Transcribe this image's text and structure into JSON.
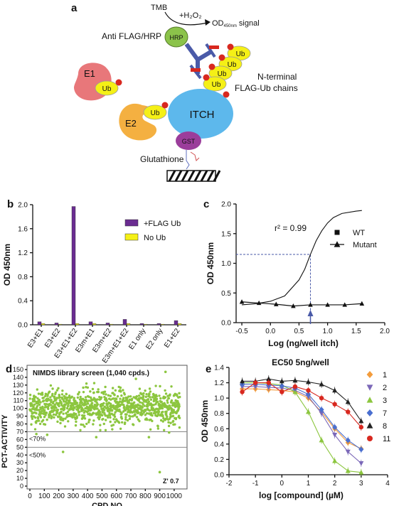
{
  "panels": [
    {
      "letter": "a",
      "labels": {
        "tmb": "TMB",
        "h2o2": "+H₂O₂",
        "od_signal_prefix": "OD",
        "od_signal_sub": "450nm",
        "od_signal_suffix": " signal",
        "antibody": "Anti FLAG/HRP",
        "hrp": "HRP",
        "e1": "E1",
        "ub": "Ub",
        "e2": "E2",
        "itch": "ITCH",
        "gst": "GST",
        "glutathione": "Glutathione",
        "flag_chain_line1": "N-terminal",
        "flag_chain_line2": "FLAG-Ub chains"
      },
      "colors": {
        "e1": "#e8777a",
        "ub": "#f5f016",
        "e2": "#f4b041",
        "itch": "#5db8ec",
        "gst": "#9b3d9b",
        "hrp": "#8bc34a",
        "antibody": "#4a5aa8",
        "flag": "#d8281f"
      }
    }
  ],
  "chart_data": [
    {
      "panel": "b",
      "type": "bar",
      "ylabel": "OD 450nm",
      "ylim": [
        0,
        2.0
      ],
      "yticks": [
        "0.0",
        "0.4",
        "0.8",
        "1.2",
        "1.6",
        "2.0"
      ],
      "categories": [
        "E3+E1",
        "E3+E2",
        "E3+E1+E2",
        "E3m+E1",
        "E3m+E2",
        "E3m+E1+E2",
        "E1 only",
        "E2 only",
        "E1+E2"
      ],
      "series": [
        {
          "name": "+FLAG Ub",
          "color": "#6a2c91",
          "values": [
            0.05,
            0.03,
            1.97,
            0.05,
            0.03,
            0.09,
            0.02,
            0.02,
            0.07
          ]
        },
        {
          "name": "No Ub",
          "color": "#f5f016",
          "values": [
            0.02,
            0.01,
            0.02,
            0.02,
            0.01,
            0.02,
            0.01,
            0.01,
            0.02
          ]
        }
      ],
      "legend": "top-right"
    },
    {
      "panel": "c",
      "type": "line",
      "ylabel": "OD 450nm",
      "xlabel": "Log (ng/well itch)",
      "xlim": [
        -0.6,
        2.0
      ],
      "ylim": [
        0,
        2.0
      ],
      "xticks": [
        "-0.5",
        "0.0",
        "0.5",
        "1.0",
        "1.5",
        "2.0"
      ],
      "yticks": [
        "0.0",
        "0.5",
        "1.0",
        "1.5",
        "2.0"
      ],
      "annotation": "r² = 0.99",
      "ec50_label": "EC50 5ng/well",
      "ec50_x": 0.7,
      "ec50_y": 1.15,
      "series": [
        {
          "name": "WT",
          "marker": "square",
          "x": [
            -0.5,
            -0.25,
            0.0,
            0.25,
            0.5,
            0.6,
            0.7,
            0.8,
            0.9,
            1.0,
            1.1,
            1.25,
            1.5,
            1.6
          ],
          "y": [
            0.3,
            0.32,
            0.36,
            0.45,
            0.72,
            0.9,
            1.15,
            1.38,
            1.55,
            1.68,
            1.77,
            1.84,
            1.88,
            1.89
          ]
        },
        {
          "name": "Mutant",
          "marker": "triangle",
          "x": [
            -0.5,
            -0.2,
            0.1,
            0.4,
            0.7,
            1.0,
            1.3,
            1.6
          ],
          "y": [
            0.35,
            0.33,
            0.31,
            0.28,
            0.3,
            0.3,
            0.3,
            0.32
          ]
        }
      ],
      "legend": "right"
    },
    {
      "panel": "d",
      "type": "scatter",
      "title": "NIMDS library screen (1,040 cpds.)",
      "ylabel": "PCT-ACTIVITY",
      "xlabel": "CPD NO",
      "xlim": [
        0,
        1040
      ],
      "ylim": [
        0,
        150
      ],
      "xticks": [
        "0",
        "100",
        "200",
        "300",
        "400",
        "500",
        "600",
        "700",
        "800",
        "900",
        "1000"
      ],
      "yticks": [
        "0",
        "10",
        "20",
        "30",
        "40",
        "50",
        "60",
        "70",
        "80",
        "90",
        "100",
        "110",
        "120",
        "130",
        "140",
        "150"
      ],
      "threshold_70_label": "<70%",
      "threshold_50_label": "<50%",
      "zprime": "Z' 0.7",
      "n_points": 1040,
      "mean": 102,
      "sd": 11,
      "outliers": [
        {
          "x": 230,
          "y": 44
        },
        {
          "x": 900,
          "y": 18
        },
        {
          "x": 460,
          "y": 63
        },
        {
          "x": 940,
          "y": 147
        },
        {
          "x": 45,
          "y": 67
        },
        {
          "x": 825,
          "y": 63
        },
        {
          "x": 120,
          "y": 66
        },
        {
          "x": 965,
          "y": 69
        }
      ]
    },
    {
      "panel": "e",
      "type": "line",
      "ylabel": "OD 450nm",
      "xlabel": "log [compound] (µM)",
      "xlim": [
        -2,
        4
      ],
      "ylim": [
        0,
        1.4
      ],
      "xticks": [
        "-2",
        "-1",
        "0",
        "1",
        "2",
        "3",
        "4"
      ],
      "yticks": [
        "0.0",
        "0.2",
        "0.4",
        "0.6",
        "0.8",
        "1.0",
        "1.2",
        "1.4"
      ],
      "x": [
        -1.5,
        -1.0,
        -0.5,
        0.0,
        0.5,
        1.0,
        1.5,
        2.0,
        2.5,
        3.0
      ],
      "series": [
        {
          "name": "1",
          "marker": "diamond",
          "color": "#f39c3c",
          "y": [
            1.12,
            1.12,
            1.11,
            1.1,
            1.08,
            1.0,
            0.82,
            0.6,
            0.42,
            0.34
          ]
        },
        {
          "name": "2",
          "marker": "triangle-down",
          "color": "#7b68b8",
          "y": [
            1.15,
            1.15,
            1.14,
            1.13,
            1.1,
            1.02,
            0.8,
            0.52,
            0.3,
            0.15
          ]
        },
        {
          "name": "3",
          "marker": "triangle",
          "color": "#8cc63f",
          "y": [
            1.2,
            1.2,
            1.19,
            1.17,
            1.08,
            0.82,
            0.45,
            0.18,
            0.05,
            0.03
          ]
        },
        {
          "name": "7",
          "marker": "diamond",
          "color": "#4a6fd0",
          "y": [
            1.18,
            1.18,
            1.17,
            1.16,
            1.13,
            1.05,
            0.85,
            0.62,
            0.45,
            0.33
          ]
        },
        {
          "name": "8",
          "marker": "triangle",
          "color": "#222222",
          "y": [
            1.22,
            1.22,
            1.25,
            1.22,
            1.23,
            1.21,
            1.18,
            1.1,
            0.95,
            0.7
          ]
        },
        {
          "name": "11",
          "marker": "circle",
          "color": "#d8281f",
          "y": [
            1.08,
            1.2,
            1.2,
            1.08,
            1.15,
            1.1,
            1.0,
            0.92,
            0.82,
            0.62
          ]
        }
      ],
      "legend": "right"
    }
  ]
}
